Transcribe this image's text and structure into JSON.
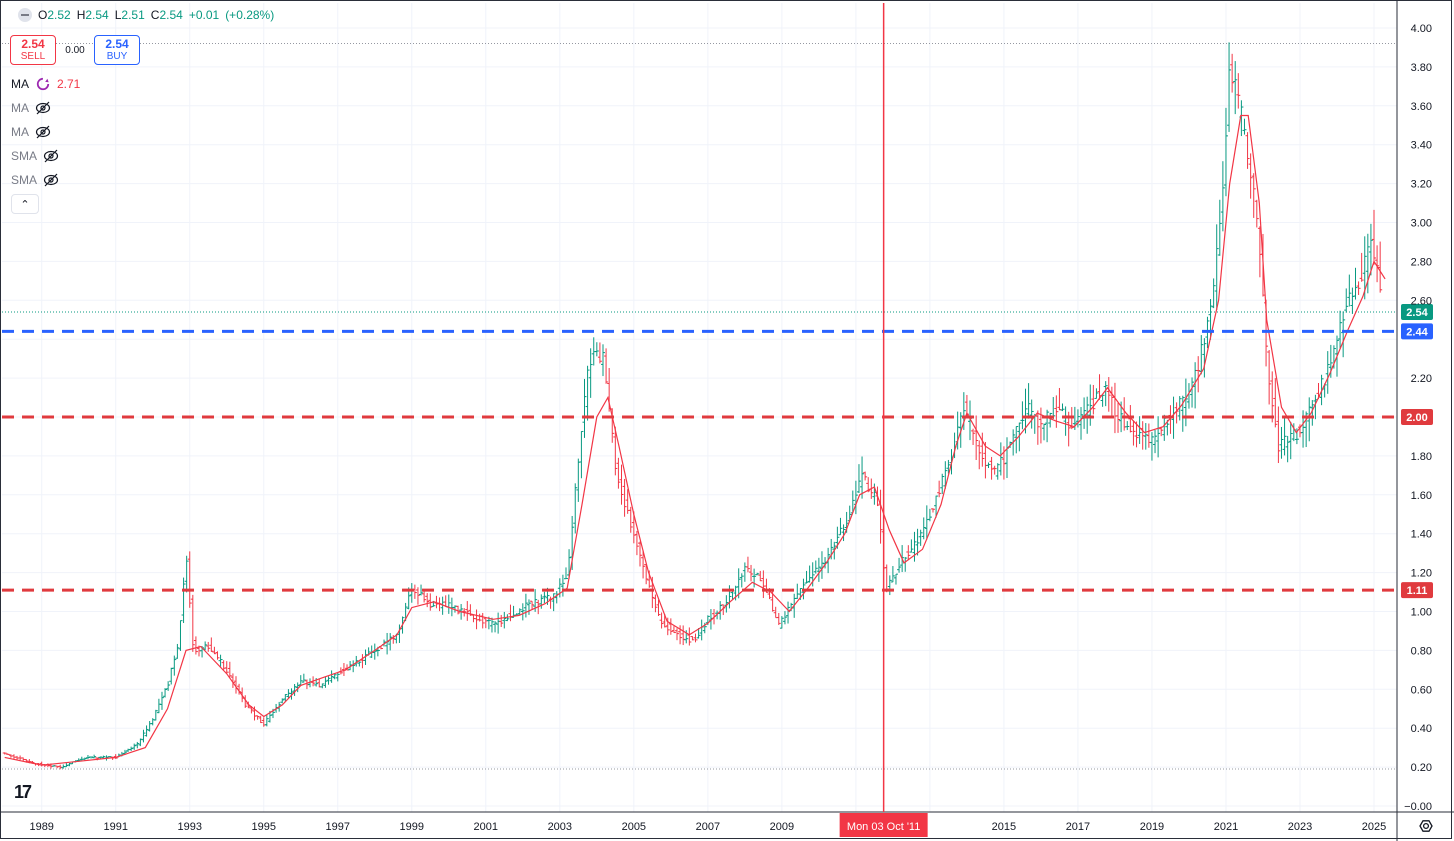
{
  "ohlc": {
    "o_label": "O",
    "o": "2.52",
    "h_label": "H",
    "h": "2.54",
    "l_label": "L",
    "l": "2.51",
    "c_label": "C",
    "c": "2.54",
    "change": "+0.01",
    "change_pct": "(+0.28%)"
  },
  "trade": {
    "sell_price": "2.54",
    "sell_label": "SELL",
    "spread": "0.00",
    "buy_price": "2.54",
    "buy_label": "BUY"
  },
  "indicators": [
    {
      "name": "MA",
      "value": "2.71",
      "visible": true
    },
    {
      "name": "MA",
      "visible": false
    },
    {
      "name": "MA",
      "visible": false
    },
    {
      "name": "SMA",
      "visible": false
    },
    {
      "name": "SMA",
      "visible": false
    }
  ],
  "crosshair": {
    "date_label": "Mon 03 Oct '11",
    "x_value": 2011.75
  },
  "colors": {
    "up": "#089981",
    "down": "#f23645",
    "ma": "#f23645",
    "blue_line": "#2962ff",
    "red_line": "#e03a3e",
    "crosshair": "#f23645",
    "grid": "#f0f3fa"
  },
  "chart_data": {
    "type": "ohlc-bar",
    "xlabel": "",
    "ylabel": "",
    "ylim": [
      -0.05,
      4.1
    ],
    "xlim": [
      1988.0,
      2026.1
    ],
    "x_ticks": [
      "1989",
      "1991",
      "1993",
      "1995",
      "1997",
      "1999",
      "2001",
      "2003",
      "2005",
      "2007",
      "2009",
      "2011",
      "2013",
      "2015",
      "2017",
      "2019",
      "2021",
      "2023",
      "2025"
    ],
    "y_ticks": [
      "4.00",
      "3.80",
      "3.60",
      "3.40",
      "3.20",
      "3.00",
      "2.80",
      "2.60",
      "2.40",
      "2.20",
      "2.00",
      "1.80",
      "1.60",
      "1.40",
      "1.20",
      "1.00",
      "0.80",
      "0.60",
      "0.40",
      "0.20",
      "0.00"
    ],
    "y_ticks_prefix": "−",
    "horizontal_lines": [
      {
        "value": 2.44,
        "label": "2.44",
        "style": "dashed",
        "color": "#2962ff"
      },
      {
        "value": 2.0,
        "label": "2.00",
        "style": "dashed",
        "color": "#e03a3e"
      },
      {
        "value": 1.11,
        "label": "1.11",
        "style": "dashed",
        "color": "#e03a3e"
      }
    ],
    "last_price": {
      "value": 2.54,
      "label": "2.54"
    },
    "dotted_levels": [
      3.92,
      0.19
    ],
    "price_path": [
      [
        1988.0,
        0.27
      ],
      [
        1988.8,
        0.22
      ],
      [
        1989.5,
        0.2
      ],
      [
        1990.2,
        0.25
      ],
      [
        1991.0,
        0.25
      ],
      [
        1991.6,
        0.32
      ],
      [
        1992.0,
        0.45
      ],
      [
        1992.4,
        0.62
      ],
      [
        1992.7,
        0.85
      ],
      [
        1992.9,
        1.3
      ],
      [
        1993.1,
        0.8
      ],
      [
        1993.5,
        0.82
      ],
      [
        1994.0,
        0.7
      ],
      [
        1994.5,
        0.52
      ],
      [
        1995.0,
        0.42
      ],
      [
        1995.5,
        0.55
      ],
      [
        1996.0,
        0.64
      ],
      [
        1996.5,
        0.62
      ],
      [
        1997.0,
        0.68
      ],
      [
        1997.5,
        0.74
      ],
      [
        1998.0,
        0.8
      ],
      [
        1998.6,
        0.88
      ],
      [
        1999.0,
        1.12
      ],
      [
        1999.5,
        1.04
      ],
      [
        2000.0,
        1.03
      ],
      [
        2000.6,
        0.98
      ],
      [
        2001.2,
        0.93
      ],
      [
        2001.8,
        1.0
      ],
      [
        2002.3,
        1.05
      ],
      [
        2002.8,
        1.07
      ],
      [
        2003.2,
        1.18
      ],
      [
        2003.5,
        1.8
      ],
      [
        2003.8,
        2.3
      ],
      [
        2004.2,
        2.3
      ],
      [
        2004.5,
        1.75
      ],
      [
        2004.9,
        1.45
      ],
      [
        2005.3,
        1.2
      ],
      [
        2005.7,
        0.95
      ],
      [
        2006.2,
        0.88
      ],
      [
        2006.6,
        0.85
      ],
      [
        2007.0,
        0.96
      ],
      [
        2007.5,
        1.05
      ],
      [
        2008.0,
        1.22
      ],
      [
        2008.5,
        1.15
      ],
      [
        2008.9,
        0.92
      ],
      [
        2009.3,
        1.05
      ],
      [
        2009.8,
        1.2
      ],
      [
        2010.3,
        1.3
      ],
      [
        2010.8,
        1.5
      ],
      [
        2011.2,
        1.7
      ],
      [
        2011.6,
        1.55
      ],
      [
        2011.8,
        1.1
      ],
      [
        2012.2,
        1.25
      ],
      [
        2012.6,
        1.35
      ],
      [
        2013.0,
        1.5
      ],
      [
        2013.5,
        1.75
      ],
      [
        2013.9,
        2.05
      ],
      [
        2014.3,
        1.85
      ],
      [
        2014.7,
        1.7
      ],
      [
        2015.2,
        1.85
      ],
      [
        2015.6,
        2.05
      ],
      [
        2016.0,
        1.95
      ],
      [
        2016.4,
        2.05
      ],
      [
        2016.8,
        1.95
      ],
      [
        2017.3,
        2.05
      ],
      [
        2017.7,
        2.15
      ],
      [
        2018.1,
        2.0
      ],
      [
        2018.6,
        1.92
      ],
      [
        2019.0,
        1.88
      ],
      [
        2019.5,
        2.0
      ],
      [
        2019.9,
        2.1
      ],
      [
        2020.3,
        2.3
      ],
      [
        2020.7,
        2.7
      ],
      [
        2020.95,
        3.3
      ],
      [
        2021.1,
        3.8
      ],
      [
        2021.4,
        3.55
      ],
      [
        2021.7,
        3.2
      ],
      [
        2021.9,
        2.9
      ],
      [
        2022.1,
        2.3
      ],
      [
        2022.4,
        1.85
      ],
      [
        2022.7,
        1.9
      ],
      [
        2023.0,
        1.92
      ],
      [
        2023.4,
        2.1
      ],
      [
        2023.8,
        2.25
      ],
      [
        2024.2,
        2.55
      ],
      [
        2024.6,
        2.7
      ],
      [
        2024.9,
        2.88
      ],
      [
        2025.1,
        2.75
      ],
      [
        2025.3,
        2.54
      ]
    ],
    "ma_path": [
      [
        1988.0,
        0.25
      ],
      [
        1989.0,
        0.21
      ],
      [
        1990.0,
        0.23
      ],
      [
        1991.0,
        0.25
      ],
      [
        1991.8,
        0.3
      ],
      [
        1992.4,
        0.5
      ],
      [
        1992.9,
        0.8
      ],
      [
        1993.3,
        0.82
      ],
      [
        1994.0,
        0.68
      ],
      [
        1994.6,
        0.52
      ],
      [
        1995.0,
        0.46
      ],
      [
        1995.5,
        0.52
      ],
      [
        1996.0,
        0.62
      ],
      [
        1996.6,
        0.66
      ],
      [
        1997.2,
        0.7
      ],
      [
        1998.0,
        0.8
      ],
      [
        1998.6,
        0.88
      ],
      [
        1999.0,
        1.02
      ],
      [
        1999.6,
        1.05
      ],
      [
        2000.3,
        1.0
      ],
      [
        2001.2,
        0.96
      ],
      [
        2001.9,
        0.98
      ],
      [
        2002.6,
        1.04
      ],
      [
        2003.2,
        1.12
      ],
      [
        2003.6,
        1.55
      ],
      [
        2004.0,
        2.0
      ],
      [
        2004.3,
        2.1
      ],
      [
        2004.6,
        1.85
      ],
      [
        2005.0,
        1.5
      ],
      [
        2005.4,
        1.2
      ],
      [
        2005.9,
        0.95
      ],
      [
        2006.5,
        0.88
      ],
      [
        2007.0,
        0.94
      ],
      [
        2007.6,
        1.05
      ],
      [
        2008.2,
        1.15
      ],
      [
        2008.7,
        1.1
      ],
      [
        2009.2,
        1.0
      ],
      [
        2009.7,
        1.12
      ],
      [
        2010.2,
        1.25
      ],
      [
        2010.7,
        1.4
      ],
      [
        2011.1,
        1.6
      ],
      [
        2011.5,
        1.64
      ],
      [
        2011.9,
        1.42
      ],
      [
        2012.3,
        1.25
      ],
      [
        2012.8,
        1.32
      ],
      [
        2013.3,
        1.55
      ],
      [
        2013.7,
        1.85
      ],
      [
        2014.0,
        2.02
      ],
      [
        2014.5,
        1.85
      ],
      [
        2014.9,
        1.8
      ],
      [
        2015.4,
        1.9
      ],
      [
        2015.9,
        2.02
      ],
      [
        2016.4,
        1.98
      ],
      [
        2016.9,
        1.95
      ],
      [
        2017.4,
        2.05
      ],
      [
        2017.8,
        2.15
      ],
      [
        2018.3,
        2.02
      ],
      [
        2018.8,
        1.92
      ],
      [
        2019.3,
        1.95
      ],
      [
        2019.8,
        2.06
      ],
      [
        2020.4,
        2.25
      ],
      [
        2020.8,
        2.6
      ],
      [
        2021.1,
        3.2
      ],
      [
        2021.4,
        3.55
      ],
      [
        2021.6,
        3.55
      ],
      [
        2021.9,
        3.1
      ],
      [
        2022.1,
        2.5
      ],
      [
        2022.5,
        2.05
      ],
      [
        2022.9,
        1.92
      ],
      [
        2023.3,
        2.02
      ],
      [
        2023.8,
        2.22
      ],
      [
        2024.3,
        2.45
      ],
      [
        2024.7,
        2.62
      ],
      [
        2025.0,
        2.8
      ],
      [
        2025.3,
        2.71
      ]
    ]
  }
}
